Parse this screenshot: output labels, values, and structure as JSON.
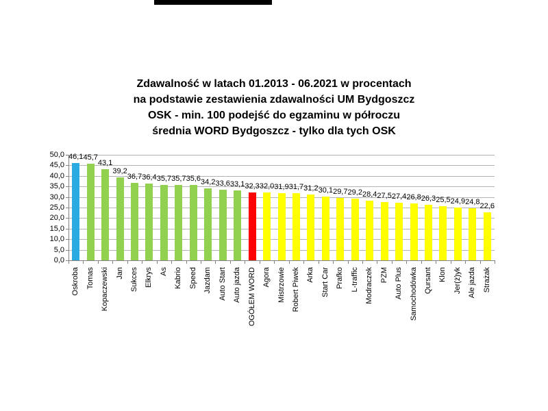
{
  "page": {
    "background": "#ffffff",
    "redaction_bar_color": "#000000"
  },
  "title": {
    "lines": [
      "Zdawalność w latach 01.2013 - 06.2021 w procentach",
      "na podstawie zestawienia zdawalności UM Bydgoszcz",
      "OSK - min. 100 podejść do egzaminu w półroczu",
      "średnia WORD Bydgoszcz - tylko dla tych OSK"
    ]
  },
  "chart_data": {
    "type": "bar",
    "title": "Zdawalność w latach 01.2013 - 06.2021 w procentach na podstawie zestawienia zdawalności UM Bydgoszcz OSK - min. 100 podejść do egzaminu w półroczu średnia WORD Bydgoszcz - tylko dla tych OSK",
    "xlabel": "",
    "ylabel": "",
    "ylim": [
      0,
      50
    ],
    "ytick_step": 5,
    "decimal_separator": ",",
    "grid": true,
    "legend": "none",
    "categories": [
      "Oskroba",
      "Tomas",
      "Kopaczewski",
      "Jan",
      "Sukces",
      "Elkrys",
      "As",
      "Kabrio",
      "Speed",
      "Jazdam",
      "Auto Start",
      "Auto jazda",
      "OGÓŁEM WORD",
      "Agora",
      "Mistrzowie",
      "Robert Piwek",
      "Arka",
      "Start Car",
      "Prafko",
      "L-traffic",
      "Modraczek",
      "PZM",
      "Auto Plus",
      "Samochodówka",
      "Qursant",
      "Klon",
      "Jer(ż)yk",
      "Ale jazda",
      "Strażak"
    ],
    "values": [
      46.1,
      45.7,
      43.1,
      39.2,
      36.7,
      36.4,
      35.7,
      35.7,
      35.6,
      34.2,
      33.6,
      33.1,
      32.3,
      32.0,
      31.9,
      31.7,
      31.2,
      30.1,
      29.7,
      29.2,
      28.4,
      27.5,
      27.4,
      26.8,
      26.3,
      25.5,
      24.9,
      24.8,
      22.6
    ],
    "bar_colors": [
      "#29ABE2",
      "#92D050",
      "#92D050",
      "#92D050",
      "#92D050",
      "#92D050",
      "#92D050",
      "#92D050",
      "#92D050",
      "#92D050",
      "#92D050",
      "#92D050",
      "#FF0000",
      "#FFFF00",
      "#FFFF00",
      "#FFFF00",
      "#FFFF00",
      "#FFFF00",
      "#FFFF00",
      "#FFFF00",
      "#FFFF00",
      "#FFFF00",
      "#FFFF00",
      "#FFFF00",
      "#FFFF00",
      "#FFFF00",
      "#FFFF00",
      "#FFFF00",
      "#FFFF00"
    ],
    "highlight": {
      "category": "OGÓŁEM WORD",
      "color": "#FF0000",
      "meaning": "średnia WORD Bydgoszcz"
    }
  }
}
